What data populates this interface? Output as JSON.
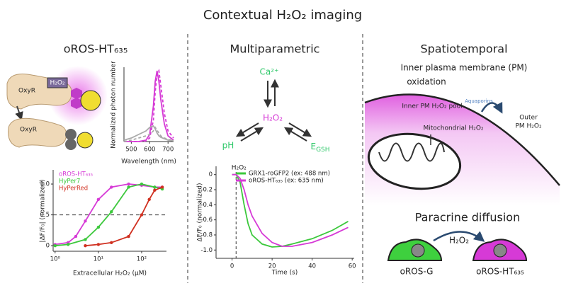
{
  "title": "Contextual H₂O₂ imaging",
  "sections": {
    "left": {
      "heading": "oROS-HT₆₃₅",
      "cartoon": {
        "h2o2": "H₂O₂",
        "oxyr_top": "OxyR",
        "oxyr_bottom": "OxyR"
      }
    },
    "middle": {
      "heading": "Multiparametric",
      "nodes": {
        "ca": "Ca²⁺",
        "h2o2": "H₂O₂",
        "ph": "pH",
        "egsh": {
          "main": "E",
          "sub": "GSH"
        }
      }
    },
    "right": {
      "heading": "Spatiotemporal",
      "membrane_title": "Inner plasma membrane (PM)",
      "membrane_title_2": "oxidation",
      "inner_pool": "Inner PM H₂O₂ pool",
      "aquaporin": "Aquaporins",
      "outer_1": "Outer",
      "outer_2": "PM H₂O₂",
      "mito": "Mitochondrial H₂O₂",
      "paracrine": "Paracrine diffusion",
      "paracrine_h2o2": "H₂O₂",
      "cell_g": "oROS-G",
      "cell_ht": "oROS-HT₆₃₅"
    }
  },
  "chart_data": [
    {
      "type": "line",
      "xlabel": "Wavelength (nm)",
      "ylabel": "Normalized photon number",
      "x": [
        460,
        500,
        540,
        580,
        600,
        620,
        630,
        640,
        650,
        660,
        680,
        700,
        730
      ],
      "series": [
        {
          "color": "#d63ad6",
          "dash": false,
          "values": [
            0,
            0,
            0,
            0.02,
            0.1,
            0.5,
            0.85,
            1.0,
            0.85,
            0.6,
            0.25,
            0.08,
            0.02
          ]
        },
        {
          "color": "#d63ad6",
          "dash": true,
          "values": [
            0,
            0,
            0,
            0.01,
            0.05,
            0.3,
            0.7,
            0.95,
            1.0,
            0.8,
            0.4,
            0.15,
            0.05
          ]
        },
        {
          "color": "#aaaaaa",
          "dash": false,
          "values": [
            0.02,
            0.05,
            0.1,
            0.15,
            0.2,
            0.22,
            0.18,
            0.12,
            0.08,
            0.06,
            0.04,
            0.02,
            0.01
          ]
        },
        {
          "color": "#aaaaaa",
          "dash": true,
          "values": [
            0,
            0.02,
            0.05,
            0.08,
            0.1,
            0.15,
            0.2,
            0.16,
            0.12,
            0.08,
            0.05,
            0.03,
            0.02
          ]
        }
      ],
      "xlim": [
        460,
        730
      ],
      "xticks": [
        500,
        600,
        700
      ],
      "ylim": [
        0,
        1.05
      ]
    },
    {
      "type": "line",
      "xlabel": "Extracellular H₂O₂ (μM)",
      "ylabel": "|ΔF/F₀| (normalized)",
      "log_x": true,
      "markers": true,
      "legend": "upper left",
      "legend_swatch": false,
      "hline": 0.5,
      "series": [
        {
          "name": "oROS-HT₆₃₅",
          "color": "#d63ad6",
          "x": [
            1,
            2,
            3,
            5,
            10,
            20,
            50,
            100,
            200,
            300
          ],
          "values": [
            0.02,
            0.05,
            0.15,
            0.4,
            0.75,
            0.95,
            1.0,
            0.98,
            0.95,
            0.95
          ]
        },
        {
          "name": "HyPer7",
          "color": "#3cc83c",
          "x": [
            1,
            2,
            5,
            10,
            20,
            50,
            100,
            200,
            300
          ],
          "values": [
            0,
            0.02,
            0.1,
            0.3,
            0.55,
            0.95,
            1.0,
            0.95,
            0.92
          ]
        },
        {
          "name": "HyPerRed",
          "color": "#d03020",
          "x": [
            5,
            10,
            20,
            50,
            100,
            150,
            200,
            300
          ],
          "values": [
            0,
            0.02,
            0.05,
            0.15,
            0.5,
            0.75,
            0.9,
            0.95
          ]
        }
      ],
      "xlim": [
        0.9,
        375
      ],
      "xticks": [
        {
          "value": 1,
          "label": "10⁰"
        },
        {
          "value": 10,
          "label": "10¹"
        },
        {
          "value": 100,
          "label": "10²"
        }
      ],
      "ylim": [
        -0.09,
        1.23
      ],
      "yticks": [
        0,
        0.5,
        {
          "value": 1,
          "label": "1.0"
        }
      ]
    },
    {
      "type": "line",
      "xlabel": "Time (s)",
      "ylabel": "ΔF/F₀ (normalized)",
      "legend": "upper right",
      "legend_swatch": true,
      "annotations": [
        {
          "text": "H₂O₂",
          "x": 2
        }
      ],
      "x": [
        0,
        2,
        4,
        6,
        8,
        10,
        15,
        20,
        25,
        30,
        40,
        50,
        58
      ],
      "series": [
        {
          "name": "GRX1-roGFP2 (ex: 488 nm)",
          "color": "#3cc83c",
          "values": [
            0,
            0,
            -0.1,
            -0.4,
            -0.65,
            -0.8,
            -0.92,
            -0.96,
            -0.95,
            -0.92,
            -0.85,
            -0.74,
            -0.62
          ]
        },
        {
          "name": "oROS-HT₆₃₅ (ex: 635 nm)",
          "color": "#d63ad6",
          "values": [
            0,
            0,
            -0.05,
            -0.2,
            -0.4,
            -0.55,
            -0.78,
            -0.9,
            -0.95,
            -0.95,
            -0.9,
            -0.8,
            -0.7
          ]
        }
      ],
      "xlim": [
        -8,
        61
      ],
      "xticks": [
        0,
        20,
        40,
        60
      ],
      "ylim": [
        -1.11,
        0.11
      ],
      "yticks": [
        0,
        -0.2,
        -0.4,
        -0.6,
        -0.8,
        {
          "value": -1,
          "label": "-1.0"
        }
      ]
    }
  ]
}
